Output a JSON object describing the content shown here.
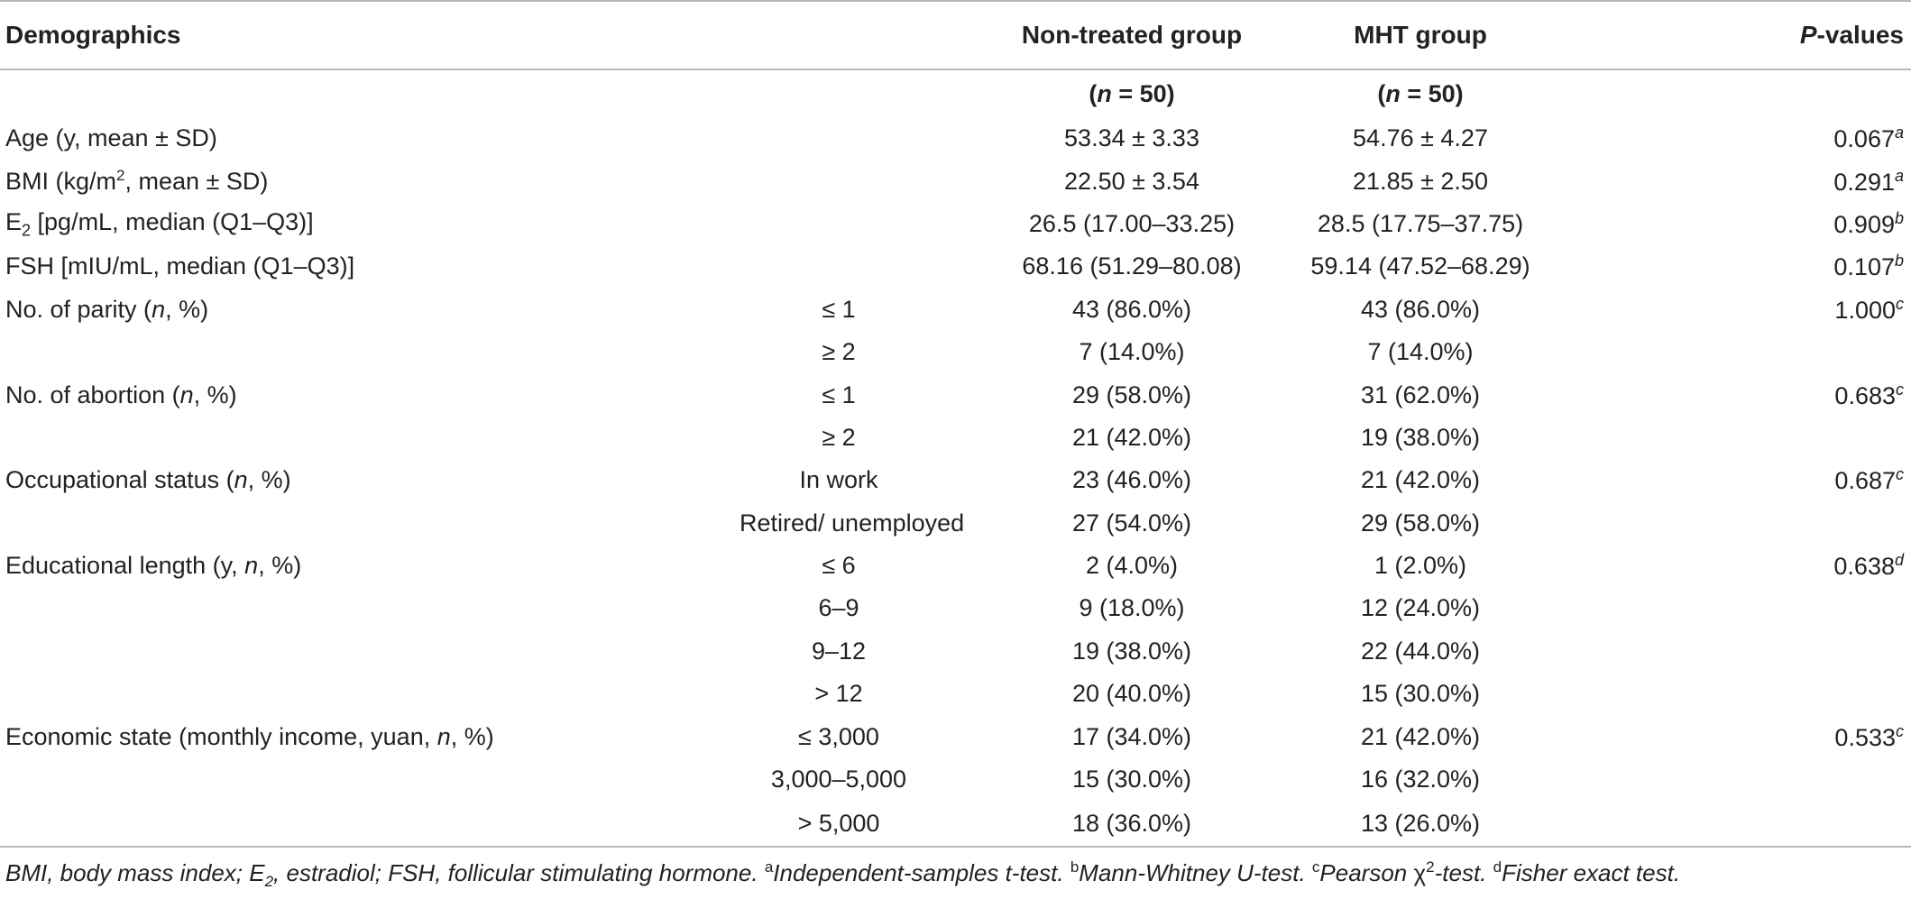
{
  "table": {
    "headers": {
      "demographics": "Demographics",
      "non_treated": "Non-treated group",
      "mht": "MHT group",
      "p_values": "P-values"
    },
    "n_row": {
      "non_treated": "(n = 50)",
      "mht": "(n = 50)"
    },
    "rows": [
      {
        "label": "Age (y, mean ± SD)",
        "sub": "",
        "non_treated": "53.34 ± 3.33",
        "mht": "54.76 ± 4.27",
        "p": "0.067a"
      },
      {
        "label": "BMI (kg/m2, mean ± SD)",
        "sub": "",
        "non_treated": "22.50 ± 3.54",
        "mht": "21.85 ± 2.50",
        "p": "0.291a"
      },
      {
        "label": "E2 [pg/mL, median (Q1–Q3)]",
        "sub": "",
        "non_treated": "26.5 (17.00–33.25)",
        "mht": "28.5 (17.75–37.75)",
        "p": "0.909b"
      },
      {
        "label": "FSH [mIU/mL, median (Q1–Q3)]",
        "sub": "",
        "non_treated": "68.16 (51.29–80.08)",
        "mht": "59.14 (47.52–68.29)",
        "p": "0.107b"
      },
      {
        "label": "No. of parity (n, %)",
        "sub": "≤ 1",
        "non_treated": "43 (86.0%)",
        "mht": "43 (86.0%)",
        "p": "1.000c"
      },
      {
        "label": "",
        "sub": "≥ 2",
        "non_treated": "7 (14.0%)",
        "mht": "7 (14.0%)",
        "p": ""
      },
      {
        "label": "No. of abortion (n, %)",
        "sub": "≤ 1",
        "non_treated": "29 (58.0%)",
        "mht": "31 (62.0%)",
        "p": "0.683c"
      },
      {
        "label": "",
        "sub": "≥ 2",
        "non_treated": "21 (42.0%)",
        "mht": "19 (38.0%)",
        "p": ""
      },
      {
        "label": "Occupational status (n, %)",
        "sub": "In work",
        "non_treated": "23 (46.0%)",
        "mht": "21 (42.0%)",
        "p": "0.687c"
      },
      {
        "label": "",
        "sub": "Retired/ unemployed",
        "non_treated": "27 (54.0%)",
        "mht": "29 (58.0%)",
        "p": ""
      },
      {
        "label": "Educational length (y, n, %)",
        "sub": "≤ 6",
        "non_treated": "2 (4.0%)",
        "mht": "1 (2.0%)",
        "p": "0.638d"
      },
      {
        "label": "",
        "sub": "6–9",
        "non_treated": "9 (18.0%)",
        "mht": "12 (24.0%)",
        "p": ""
      },
      {
        "label": "",
        "sub": "9–12",
        "non_treated": "19 (38.0%)",
        "mht": "22 (44.0%)",
        "p": ""
      },
      {
        "label": "",
        "sub": "> 12",
        "non_treated": "20 (40.0%)",
        "mht": "15 (30.0%)",
        "p": ""
      },
      {
        "label": "Economic state (monthly income, yuan, n, %)",
        "sub": "≤ 3,000",
        "non_treated": "17 (34.0%)",
        "mht": "21 (42.0%)",
        "p": "0.533c"
      },
      {
        "label": "",
        "sub": "3,000–5,000",
        "non_treated": "15 (30.0%)",
        "mht": "16 (32.0%)",
        "p": ""
      },
      {
        "label": "",
        "sub": "> 5,000",
        "non_treated": "18 (36.0%)",
        "mht": "13 (26.0%)",
        "p": ""
      }
    ]
  },
  "footnote": {
    "text": "BMI, body mass index; E2, estradiol; FSH, follicular stimulating hormone. aIndependent-samples t-test. bMann-Whitney U-test. cPearson χ2-test. dFisher exact test."
  }
}
